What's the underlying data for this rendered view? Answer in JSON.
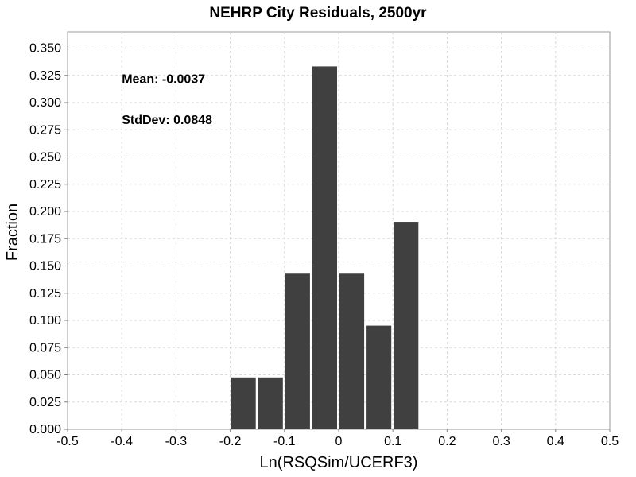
{
  "chart_data": {
    "type": "bar",
    "title": "NEHRP City Residuals, 2500yr",
    "xlabel": "Ln(RSQSim/UCERF3)",
    "ylabel": "Fraction",
    "xlim": [
      -0.5,
      0.5
    ],
    "ylim": [
      0,
      0.365
    ],
    "grid": true,
    "bar_color": "#404040",
    "bins": [
      {
        "x_start": -0.2,
        "x_end": -0.15,
        "value": 0.0476
      },
      {
        "x_start": -0.15,
        "x_end": -0.1,
        "value": 0.0476
      },
      {
        "x_start": -0.1,
        "x_end": -0.05,
        "value": 0.1429
      },
      {
        "x_start": -0.05,
        "x_end": 0.0,
        "value": 0.3333
      },
      {
        "x_start": 0.0,
        "x_end": 0.05,
        "value": 0.1429
      },
      {
        "x_start": 0.05,
        "x_end": 0.1,
        "value": 0.0952
      },
      {
        "x_start": 0.1,
        "x_end": 0.15,
        "value": 0.1905
      }
    ],
    "x_ticks": [
      {
        "value": -0.5,
        "label": "-0.5"
      },
      {
        "value": -0.4,
        "label": "-0.4"
      },
      {
        "value": -0.3,
        "label": "-0.3"
      },
      {
        "value": -0.2,
        "label": "-0.2"
      },
      {
        "value": -0.1,
        "label": "-0.1"
      },
      {
        "value": 0.0,
        "label": "0"
      },
      {
        "value": 0.1,
        "label": "0.1"
      },
      {
        "value": 0.2,
        "label": "0.2"
      },
      {
        "value": 0.3,
        "label": "0.3"
      },
      {
        "value": 0.4,
        "label": "0.4"
      },
      {
        "value": 0.5,
        "label": "0.5"
      }
    ],
    "y_ticks": [
      {
        "value": 0.0,
        "label": "0.000"
      },
      {
        "value": 0.025,
        "label": "0.025"
      },
      {
        "value": 0.05,
        "label": "0.050"
      },
      {
        "value": 0.075,
        "label": "0.075"
      },
      {
        "value": 0.1,
        "label": "0.100"
      },
      {
        "value": 0.125,
        "label": "0.125"
      },
      {
        "value": 0.15,
        "label": "0.150"
      },
      {
        "value": 0.175,
        "label": "0.175"
      },
      {
        "value": 0.2,
        "label": "0.200"
      },
      {
        "value": 0.225,
        "label": "0.225"
      },
      {
        "value": 0.25,
        "label": "0.250"
      },
      {
        "value": 0.275,
        "label": "0.275"
      },
      {
        "value": 0.3,
        "label": "0.300"
      },
      {
        "value": 0.325,
        "label": "0.325"
      },
      {
        "value": 0.35,
        "label": "0.350"
      }
    ],
    "annotations": [
      {
        "text": "Mean: -0.0037",
        "x": -0.4,
        "y": 0.318
      },
      {
        "text": "StdDev: 0.0848",
        "x": -0.4,
        "y": 0.2805
      }
    ]
  }
}
